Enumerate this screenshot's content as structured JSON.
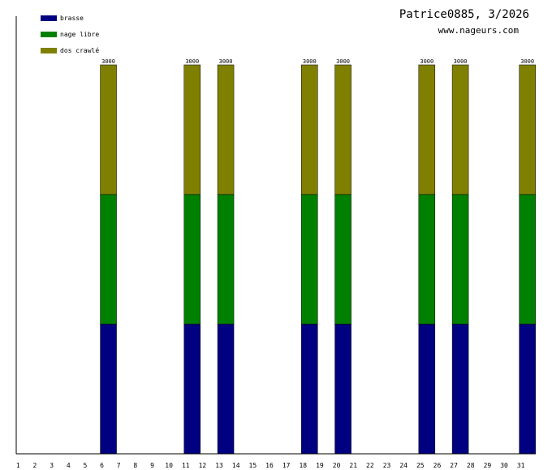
{
  "chart_data": {
    "type": "bar",
    "stacked": true,
    "title": "Patrice0885, 3/2026",
    "subtitle": "www.nageurs.com",
    "categories": [
      "1",
      "2",
      "3",
      "4",
      "5",
      "6",
      "7",
      "8",
      "9",
      "10",
      "11",
      "12",
      "13",
      "14",
      "15",
      "16",
      "17",
      "18",
      "19",
      "20",
      "21",
      "22",
      "23",
      "24",
      "25",
      "26",
      "27",
      "28",
      "29",
      "30",
      "31"
    ],
    "series": [
      {
        "name": "brasse",
        "color": "#000080",
        "values": [
          0,
          0,
          0,
          0,
          0,
          1000,
          0,
          0,
          0,
          0,
          1000,
          0,
          1000,
          0,
          0,
          0,
          0,
          1000,
          0,
          1000,
          0,
          0,
          0,
          0,
          1000,
          0,
          1000,
          0,
          0,
          0,
          1000
        ]
      },
      {
        "name": "nage libre",
        "color": "#008000",
        "values": [
          0,
          0,
          0,
          0,
          0,
          1000,
          0,
          0,
          0,
          0,
          1000,
          0,
          1000,
          0,
          0,
          0,
          0,
          1000,
          0,
          1000,
          0,
          0,
          0,
          0,
          1000,
          0,
          1000,
          0,
          0,
          0,
          1000
        ]
      },
      {
        "name": "dos crawlé",
        "color": "#808000",
        "values": [
          0,
          0,
          0,
          0,
          0,
          1000,
          0,
          0,
          0,
          0,
          1000,
          0,
          1000,
          0,
          0,
          0,
          0,
          1000,
          0,
          1000,
          0,
          0,
          0,
          0,
          1000,
          0,
          1000,
          0,
          0,
          0,
          1000
        ]
      }
    ],
    "totals": [
      0,
      0,
      0,
      0,
      0,
      3000,
      0,
      0,
      0,
      0,
      3000,
      0,
      3000,
      0,
      0,
      0,
      0,
      3000,
      0,
      3000,
      0,
      0,
      0,
      0,
      3000,
      0,
      3000,
      0,
      0,
      0,
      3000
    ],
    "ylim": [
      0,
      3000
    ],
    "xlabel": "",
    "ylabel": "",
    "grid": false,
    "legend": "top-left"
  }
}
